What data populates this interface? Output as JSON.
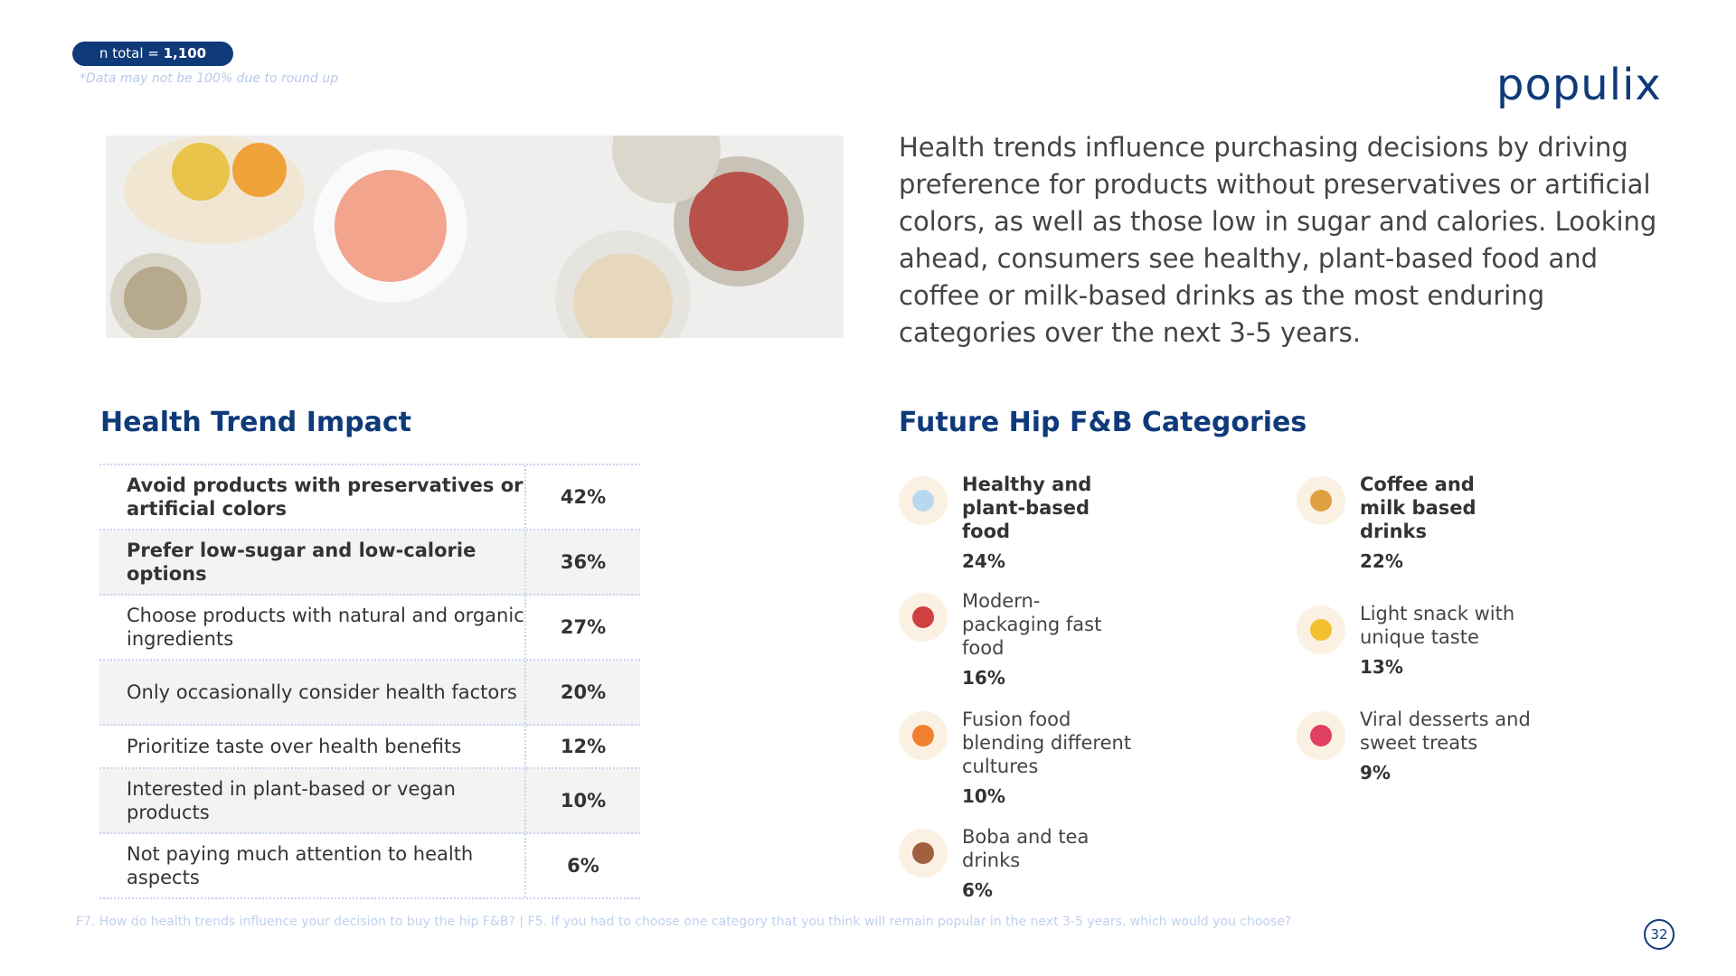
{
  "header": {
    "badge_label": "n total =",
    "badge_value": "1,100",
    "note": "*Data may not be 100% due to round up",
    "logo": "populix"
  },
  "summary": "Health trends influence purchasing decisions by driving preference for products without preservatives or artificial colors, as well as those low in sugar and calories. Looking ahead, consumers see healthy, plant-based food and coffee or milk-based drinks as the most enduring categories over the next 3-5 years.",
  "health_table": {
    "title": "Health Trend Impact",
    "rows": [
      {
        "label": "Avoid products with preservatives or artificial colors",
        "value": "42%",
        "bold": true
      },
      {
        "label": "Prefer low-sugar and low-calorie options",
        "value": "36%",
        "bold": true
      },
      {
        "label": "Choose products with natural and organic ingredients",
        "value": "27%",
        "bold": false
      },
      {
        "label": "Only occasionally consider health factors",
        "value": "20%",
        "bold": false
      },
      {
        "label": "Prioritize taste over health benefits",
        "value": "12%",
        "bold": false
      },
      {
        "label": "Interested in plant-based or vegan products",
        "value": "10%",
        "bold": false
      },
      {
        "label": "Not paying much attention to health aspects",
        "value": "6%",
        "bold": false
      }
    ]
  },
  "categories": {
    "title": "Future Hip F&B Categories",
    "items": [
      {
        "label": "Healthy and plant-based food",
        "value": "24%",
        "bold": true
      },
      {
        "label": "Coffee and milk based drinks",
        "value": "22%",
        "bold": true
      },
      {
        "label": "Modern-packaging fast food",
        "value": "16%",
        "bold": false
      },
      {
        "label": "Light snack with unique taste",
        "value": "13%",
        "bold": false
      },
      {
        "label": "Fusion food blending different cultures",
        "value": "10%",
        "bold": false
      },
      {
        "label": "Viral desserts and sweet treats",
        "value": "9%",
        "bold": false
      },
      {
        "label": "Boba and tea drinks",
        "value": "6%",
        "bold": false
      }
    ]
  },
  "footer": {
    "source": "F7. How do health trends influence your decision to buy the hip F&B? | F5. If you had to choose one category that you think will remain popular in the next 3-5 years, which would you choose?",
    "page": "32"
  }
}
